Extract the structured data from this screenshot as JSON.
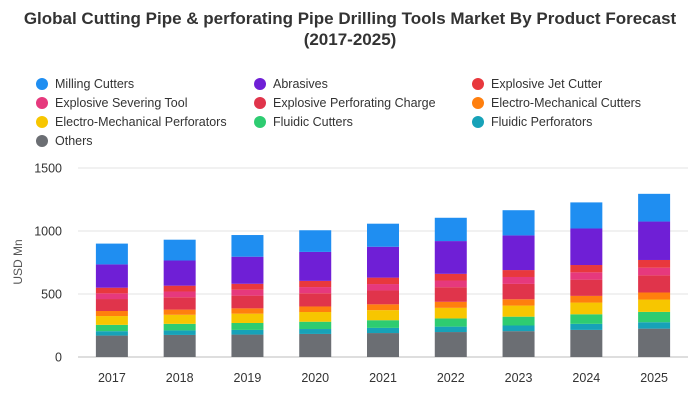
{
  "chart_data": {
    "type": "bar",
    "stacked": true,
    "title": "Global Cutting Pipe & perforating Pipe Drilling Tools Market By Product Forecast (2017-2025)",
    "ylabel": "USD Mn",
    "xlabel": "",
    "ylim": [
      0,
      1500
    ],
    "yticks": [
      0,
      500,
      1000,
      1500
    ],
    "grid": true,
    "legend_position": "top",
    "categories": [
      "2017",
      "2018",
      "2019",
      "2020",
      "2021",
      "2022",
      "2023",
      "2024",
      "2025"
    ],
    "series": [
      {
        "name": "Others",
        "color": "#6b6e73",
        "values": [
          170,
          175,
          178,
          183,
          190,
          198,
          205,
          215,
          225
        ]
      },
      {
        "name": "Fluidic Perforators",
        "color": "#17a2b8",
        "values": [
          35,
          36,
          37,
          39,
          41,
          43,
          45,
          48,
          51
        ]
      },
      {
        "name": "Fluidic Cutters",
        "color": "#2ecc71",
        "values": [
          50,
          52,
          55,
          58,
          61,
          65,
          70,
          76,
          82
        ]
      },
      {
        "name": "Electro-Mechanical Perforators",
        "color": "#f7c600",
        "values": [
          70,
          72,
          74,
          77,
          80,
          84,
          88,
          93,
          98
        ]
      },
      {
        "name": "Electro-Mechanical Cutters",
        "color": "#ff7f0e",
        "values": [
          40,
          41,
          42,
          44,
          46,
          48,
          50,
          53,
          56
        ]
      },
      {
        "name": "Explosive Perforating Charge",
        "color": "#e0344b",
        "values": [
          95,
          98,
          101,
          105,
          110,
          116,
          122,
          129,
          136
        ]
      },
      {
        "name": "Explosive Severing Tool",
        "color": "#e6397d",
        "values": [
          45,
          46,
          47,
          49,
          51,
          53,
          55,
          58,
          61
        ]
      },
      {
        "name": "Explosive Jet Cutter",
        "color": "#e8383d",
        "values": [
          45,
          46,
          47,
          49,
          51,
          53,
          55,
          58,
          61
        ]
      },
      {
        "name": "Abrasives",
        "color": "#6f1fd6",
        "values": [
          185,
          200,
          215,
          230,
          245,
          260,
          275,
          290,
          305
        ]
      },
      {
        "name": "Milling Cutters",
        "color": "#1f8ef1",
        "values": [
          165,
          165,
          172,
          172,
          183,
          185,
          200,
          207,
          220
        ]
      }
    ]
  },
  "legend": [
    {
      "label": "Milling Cutters",
      "color": "#1f8ef1"
    },
    {
      "label": "Abrasives",
      "color": "#6f1fd6"
    },
    {
      "label": "Explosive Jet Cutter",
      "color": "#e8383d"
    },
    {
      "label": "Explosive Severing Tool",
      "color": "#e6397d"
    },
    {
      "label": "Explosive Perforating Charge",
      "color": "#e0344b"
    },
    {
      "label": "Electro-Mechanical Cutters",
      "color": "#ff7f0e"
    },
    {
      "label": "Electro-Mechanical Perforators",
      "color": "#f7c600"
    },
    {
      "label": "Fluidic Cutters",
      "color": "#2ecc71"
    },
    {
      "label": "Fluidic Perforators",
      "color": "#17a2b8"
    },
    {
      "label": "Others",
      "color": "#6b6e73"
    }
  ]
}
